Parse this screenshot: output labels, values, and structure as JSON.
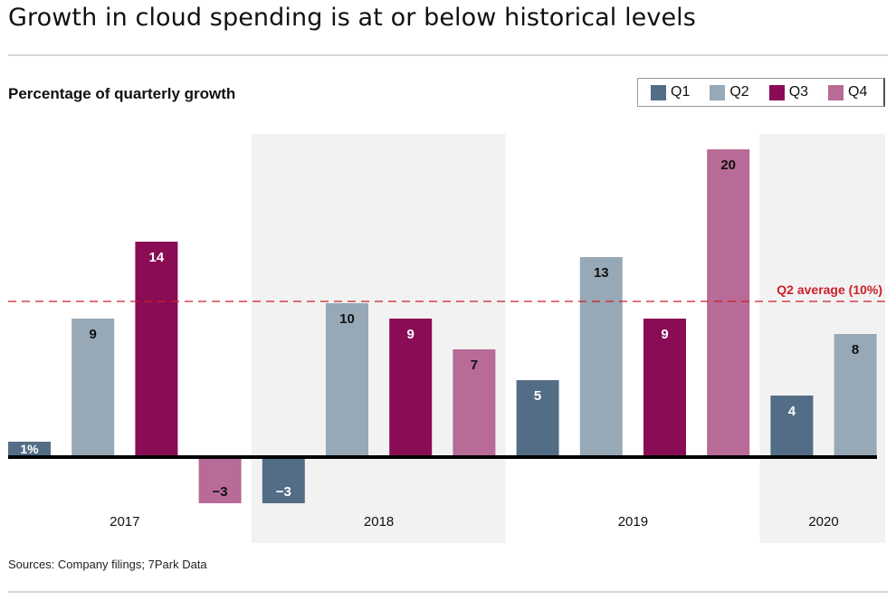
{
  "header": {
    "title": "Growth in cloud spending is at or below historical levels",
    "subtitle": "Percentage of quarterly growth"
  },
  "footer": {
    "source": "Sources: Company filings; 7Park Data"
  },
  "colors": {
    "Q1": "#536d86",
    "Q2": "#97a8b6",
    "Q3": "#8a0c55",
    "Q4": "#b86b97",
    "band": "#f2f2f2",
    "reference_line": "#cc1f2a",
    "axis": "#000000"
  },
  "chart_data": {
    "type": "bar",
    "title": "Percentage of quarterly growth",
    "xlabel": "",
    "ylabel": "",
    "ylim": [
      -3,
      20
    ],
    "grid": false,
    "legend": {
      "position": "top-right",
      "entries": [
        "Q1",
        "Q2",
        "Q3",
        "Q4"
      ]
    },
    "years": [
      "2017",
      "2018",
      "2019",
      "2020"
    ],
    "shaded_years": [
      "2018",
      "2020"
    ],
    "bars": [
      {
        "year": "2017",
        "quarter": "Q1",
        "value": 1,
        "label": "1%"
      },
      {
        "year": "2017",
        "quarter": "Q2",
        "value": 9,
        "label": "9"
      },
      {
        "year": "2017",
        "quarter": "Q3",
        "value": 14,
        "label": "14"
      },
      {
        "year": "2017",
        "quarter": "Q4",
        "value": -3,
        "label": "−3"
      },
      {
        "year": "2018",
        "quarter": "Q1",
        "value": -3,
        "label": "−3"
      },
      {
        "year": "2018",
        "quarter": "Q2",
        "value": 10,
        "label": "10"
      },
      {
        "year": "2018",
        "quarter": "Q3",
        "value": 9,
        "label": "9"
      },
      {
        "year": "2018",
        "quarter": "Q4",
        "value": 7,
        "label": "7"
      },
      {
        "year": "2019",
        "quarter": "Q1",
        "value": 5,
        "label": "5"
      },
      {
        "year": "2019",
        "quarter": "Q2",
        "value": 13,
        "label": "13"
      },
      {
        "year": "2019",
        "quarter": "Q3",
        "value": 9,
        "label": "9"
      },
      {
        "year": "2019",
        "quarter": "Q4",
        "value": 20,
        "label": "20"
      },
      {
        "year": "2020",
        "quarter": "Q1",
        "value": 4,
        "label": "4"
      },
      {
        "year": "2020",
        "quarter": "Q2",
        "value": 8,
        "label": "8"
      }
    ],
    "reference_line": {
      "value": 10,
      "label": "Q2 average (10%)",
      "style": "dashed"
    }
  }
}
